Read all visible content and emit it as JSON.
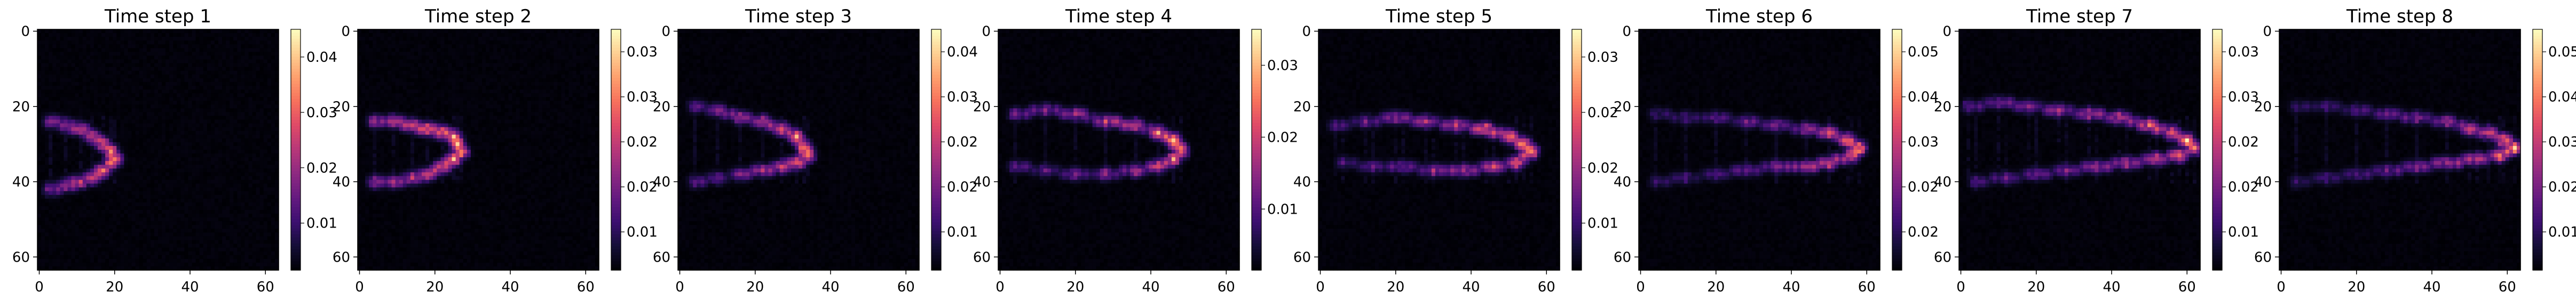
{
  "figure": {
    "colormap": "magma",
    "axes_color": "#000000",
    "background": "#ffffff"
  },
  "chart_data": [
    {
      "type": "heatmap",
      "title": "Time step 1",
      "xlim": [
        0,
        63
      ],
      "ylim": [
        63,
        0
      ],
      "xticks": [
        "0",
        "20",
        "40",
        "60"
      ],
      "yticks": [
        "0",
        "20",
        "40",
        "60"
      ],
      "colorbar": {
        "min": 0,
        "max": 0.047,
        "ticks": [
          "0.01",
          "0.02",
          "0.03",
          "0.04"
        ]
      },
      "structures": [
        {
          "x": [
            3,
            7,
            11,
            14,
            17,
            19,
            20,
            19,
            17,
            14,
            11,
            7,
            3
          ],
          "y": [
            24,
            25,
            26,
            28,
            30,
            32,
            34,
            35,
            37,
            39,
            40,
            41,
            42
          ],
          "v": [
            0.022,
            0.026,
            0.03,
            0.034,
            0.038,
            0.043,
            0.047,
            0.043,
            0.038,
            0.034,
            0.03,
            0.026,
            0.022
          ]
        }
      ]
    },
    {
      "type": "heatmap",
      "title": "Time step 2",
      "xlim": [
        0,
        63
      ],
      "ylim": [
        63,
        0
      ],
      "xticks": [
        "0",
        "20",
        "40",
        "60"
      ],
      "yticks": [
        "0",
        "20",
        "40",
        "60"
      ],
      "colorbar": {
        "min": 0,
        "max": 0.037,
        "ticks": [
          "0.01",
          "0.02",
          "0.02",
          "0.03",
          "0.03"
        ]
      },
      "structures": [
        {
          "x": [
            4,
            9,
            14,
            18,
            22,
            25,
            26,
            27,
            25,
            22,
            18,
            14,
            9,
            4
          ],
          "y": [
            24,
            24,
            25,
            26,
            27,
            28,
            30,
            32,
            34,
            36,
            38,
            39,
            40,
            40
          ],
          "v": [
            0.02,
            0.024,
            0.028,
            0.03,
            0.033,
            0.035,
            0.037,
            0.037,
            0.034,
            0.03,
            0.027,
            0.024,
            0.02,
            0.018
          ]
        }
      ]
    },
    {
      "type": "heatmap",
      "title": "Time step 3",
      "xlim": [
        0,
        63
      ],
      "ylim": [
        63,
        0
      ],
      "xticks": [
        "0",
        "20",
        "40",
        "60"
      ],
      "yticks": [
        "0",
        "20",
        "40",
        "60"
      ],
      "colorbar": {
        "min": 0,
        "max": 0.045,
        "ticks": [
          "0.01",
          "0.02",
          "0.02",
          "0.03",
          "0.04"
        ]
      },
      "structures": [
        {
          "x": [
            4,
            10,
            16,
            22,
            27,
            31,
            33,
            34,
            31,
            27,
            22,
            16,
            10,
            4
          ],
          "y": [
            20,
            21,
            23,
            24,
            26,
            28,
            31,
            33,
            35,
            36,
            37,
            38,
            39,
            40
          ],
          "v": [
            0.018,
            0.022,
            0.026,
            0.03,
            0.034,
            0.04,
            0.045,
            0.043,
            0.036,
            0.03,
            0.026,
            0.022,
            0.018,
            0.016
          ]
        }
      ]
    },
    {
      "type": "heatmap",
      "title": "Time step 4",
      "xlim": [
        0,
        63
      ],
      "ylim": [
        63,
        0
      ],
      "xticks": [
        "0",
        "20",
        "40",
        "60"
      ],
      "yticks": [
        "0",
        "20",
        "40",
        "60"
      ],
      "colorbar": {
        "min": 0,
        "max": 0.035,
        "ticks": [
          "0.01",
          "0.02",
          "0.03"
        ]
      },
      "structures": [
        {
          "x": [
            4,
            12,
            20,
            28,
            36,
            42,
            46,
            48,
            46,
            42,
            36,
            28,
            20,
            12,
            4
          ],
          "y": [
            22,
            21,
            22,
            24,
            25,
            27,
            29,
            32,
            34,
            36,
            37,
            38,
            38,
            37,
            36
          ],
          "v": [
            0.014,
            0.017,
            0.02,
            0.023,
            0.026,
            0.03,
            0.035,
            0.033,
            0.03,
            0.026,
            0.022,
            0.019,
            0.016,
            0.014,
            0.012
          ]
        }
      ]
    },
    {
      "type": "heatmap",
      "title": "Time step 5",
      "xlim": [
        0,
        63
      ],
      "ylim": [
        63,
        0
      ],
      "xticks": [
        "0",
        "20",
        "40",
        "60"
      ],
      "yticks": [
        "0",
        "20",
        "40",
        "60"
      ],
      "colorbar": {
        "min": 0,
        "max": 0.036,
        "ticks": [
          "0.01",
          "0.02",
          "0.02",
          "0.03"
        ]
      },
      "structures": [
        {
          "x": [
            4,
            12,
            20,
            28,
            36,
            44,
            50,
            54,
            56,
            52,
            46,
            38,
            30,
            22,
            14,
            6
          ],
          "y": [
            25,
            24,
            23,
            24,
            25,
            26,
            28,
            30,
            32,
            35,
            36,
            37,
            37,
            36,
            36,
            35
          ],
          "v": [
            0.012,
            0.015,
            0.018,
            0.021,
            0.025,
            0.03,
            0.034,
            0.036,
            0.034,
            0.03,
            0.026,
            0.022,
            0.019,
            0.016,
            0.013,
            0.011
          ]
        }
      ]
    },
    {
      "type": "heatmap",
      "title": "Time step 6",
      "xlim": [
        0,
        63
      ],
      "ylim": [
        63,
        0
      ],
      "xticks": [
        "0",
        "20",
        "40",
        "60"
      ],
      "yticks": [
        "0",
        "20",
        "40",
        "60"
      ],
      "colorbar": {
        "min": 0,
        "max": 0.055,
        "ticks": [
          "0.02",
          "0.02",
          "0.03",
          "0.04",
          "0.05"
        ]
      },
      "structures": [
        {
          "x": [
            4,
            12,
            20,
            28,
            36,
            44,
            50,
            55,
            58,
            56,
            50,
            44,
            36,
            28,
            20,
            12,
            4
          ],
          "y": [
            22,
            23,
            23,
            24,
            25,
            26,
            27,
            29,
            31,
            33,
            35,
            36,
            36,
            37,
            38,
            39,
            40
          ],
          "v": [
            0.014,
            0.017,
            0.02,
            0.024,
            0.028,
            0.033,
            0.04,
            0.048,
            0.055,
            0.05,
            0.042,
            0.035,
            0.029,
            0.024,
            0.02,
            0.017,
            0.014
          ]
        }
      ]
    },
    {
      "type": "heatmap",
      "title": "Time step 7",
      "xlim": [
        0,
        63
      ],
      "ylim": [
        63,
        0
      ],
      "xticks": [
        "0",
        "20",
        "40",
        "60"
      ],
      "yticks": [
        "0",
        "20",
        "40",
        "60"
      ],
      "colorbar": {
        "min": 0,
        "max": 0.032,
        "ticks": [
          "0.01",
          "0.02",
          "0.02",
          "0.03",
          "0.03"
        ]
      },
      "structures": [
        {
          "x": [
            2,
            10,
            18,
            26,
            34,
            42,
            50,
            56,
            60,
            62,
            58,
            52,
            44,
            36,
            28,
            20,
            12,
            4
          ],
          "y": [
            20,
            19,
            20,
            21,
            22,
            23,
            25,
            27,
            29,
            31,
            33,
            34,
            35,
            36,
            37,
            38,
            39,
            40
          ],
          "v": [
            0.012,
            0.014,
            0.016,
            0.018,
            0.02,
            0.022,
            0.025,
            0.029,
            0.032,
            0.03,
            0.027,
            0.024,
            0.021,
            0.018,
            0.016,
            0.014,
            0.012,
            0.011
          ]
        }
      ]
    },
    {
      "type": "heatmap",
      "title": "Time step 8",
      "xlim": [
        0,
        63
      ],
      "ylim": [
        63,
        0
      ],
      "xticks": [
        "0",
        "20",
        "40",
        "60"
      ],
      "yticks": [
        "0",
        "20",
        "40",
        "60"
      ],
      "colorbar": {
        "min": 0,
        "max": 0.052,
        "ticks": [
          "0.01",
          "0.02",
          "0.03",
          "0.04",
          "0.05"
        ]
      },
      "structures": [
        {
          "x": [
            4,
            12,
            20,
            28,
            36,
            44,
            50,
            55,
            59,
            62,
            58,
            52,
            44,
            36,
            28,
            20,
            12,
            4
          ],
          "y": [
            20,
            20,
            21,
            22,
            23,
            24,
            26,
            27,
            29,
            31,
            33,
            34,
            35,
            36,
            37,
            38,
            39,
            40
          ],
          "v": [
            0.012,
            0.015,
            0.018,
            0.021,
            0.025,
            0.029,
            0.034,
            0.04,
            0.047,
            0.052,
            0.045,
            0.038,
            0.031,
            0.026,
            0.021,
            0.018,
            0.015,
            0.012
          ]
        }
      ]
    }
  ]
}
